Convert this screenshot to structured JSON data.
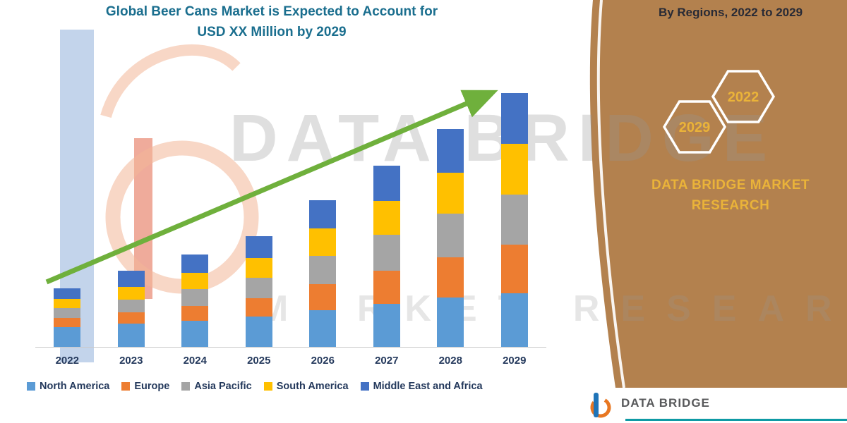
{
  "title": {
    "line1": "Global Beer Cans Market is Expected to Account for",
    "line2": "USD XX Million by 2029"
  },
  "right_panel": {
    "heading": "By Regions, 2022 to 2029",
    "hex_years": [
      {
        "year": "2029"
      },
      {
        "year": "2022"
      }
    ],
    "brand_line1": "DATA BRIDGE MARKET",
    "brand_line2": "RESEARCH"
  },
  "watermark": {
    "brand": "DATA BRIDGE",
    "tagline": "MARKET RESEARCH"
  },
  "footer": {
    "brand": "DATA BRIDGE"
  },
  "theme": {
    "panel_brown": "#b3814e",
    "gold": "#eab339",
    "title_teal": "#1a6e8e",
    "text_navy": "#24395c",
    "arrow_green": "#6fb03c",
    "teal_line": "#0f9aa5",
    "axis_gray": "#c9c9c9"
  },
  "chart_data": {
    "type": "bar",
    "stacked": true,
    "title": "Global Beer Cans Market is Expected to Account for USD XX Million by 2029",
    "categories": [
      "2022",
      "2023",
      "2024",
      "2025",
      "2026",
      "2027",
      "2028",
      "2029"
    ],
    "series": [
      {
        "name": "North America",
        "color": "#5b9bd5",
        "values": [
          28,
          33,
          37,
          43,
          52,
          61,
          70,
          76
        ]
      },
      {
        "name": "Europe",
        "color": "#ed7d31",
        "values": [
          13,
          16,
          21,
          26,
          37,
          47,
          57,
          69
        ]
      },
      {
        "name": "Asia Pacific",
        "color": "#a5a5a5",
        "values": [
          14,
          18,
          24,
          29,
          40,
          51,
          62,
          71
        ]
      },
      {
        "name": "South America",
        "color": "#ffc000",
        "values": [
          13,
          18,
          23,
          28,
          39,
          48,
          58,
          72
        ]
      },
      {
        "name": "Middle East and Africa",
        "color": "#4472c4",
        "values": [
          15,
          23,
          26,
          31,
          40,
          50,
          62,
          72
        ]
      }
    ],
    "totals": [
      83,
      108,
      131,
      157,
      208,
      257,
      309,
      360
    ],
    "units": "relative index (actual values undisclosed, shown as XX Million USD)",
    "ylim": [
      0,
      400
    ],
    "grid": false,
    "legend_position": "bottom",
    "annotations": [
      "upward green trend arrow from 2022 to 2029"
    ]
  }
}
